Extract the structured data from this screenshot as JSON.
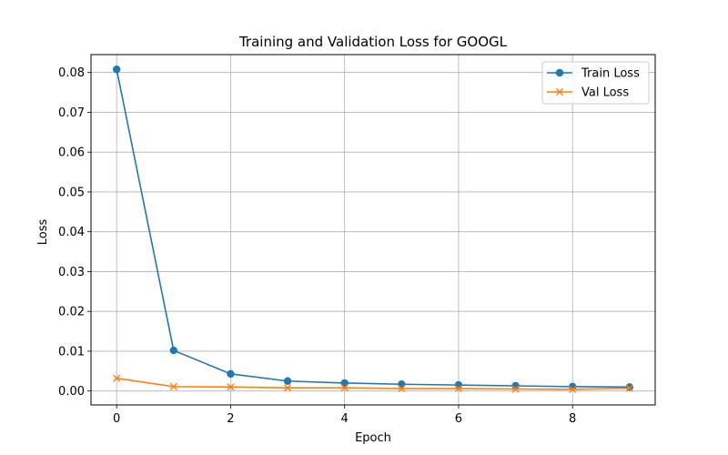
{
  "chart_data": {
    "type": "line",
    "title": "Training and Validation Loss for GOOGL",
    "xlabel": "Epoch",
    "ylabel": "Loss",
    "x": [
      0,
      1,
      2,
      3,
      4,
      5,
      6,
      7,
      8,
      9
    ],
    "xlim": [
      -0.45,
      9.45
    ],
    "ylim": [
      -0.0035,
      0.0845
    ],
    "x_ticks": [
      0,
      2,
      4,
      6,
      8
    ],
    "x_tick_labels": [
      "0",
      "2",
      "4",
      "6",
      "8"
    ],
    "y_ticks": [
      0,
      0.01,
      0.02,
      0.03,
      0.04,
      0.05,
      0.06,
      0.07,
      0.08
    ],
    "y_tick_labels": [
      "0.00",
      "0.01",
      "0.02",
      "0.03",
      "0.04",
      "0.05",
      "0.06",
      "0.07",
      "0.08"
    ],
    "grid": true,
    "legend_position": "top-right",
    "series": [
      {
        "name": "Train Loss",
        "marker": "circle",
        "color": "#1f77b4",
        "values": [
          0.0808,
          0.0102,
          0.0043,
          0.0025,
          0.002,
          0.0017,
          0.0015,
          0.0013,
          0.0011,
          0.001
        ]
      },
      {
        "name": "Val Loss",
        "marker": "x",
        "color": "#ff7f0e",
        "values": [
          0.0032,
          0.0011,
          0.001,
          0.0008,
          0.0008,
          0.0006,
          0.0006,
          0.0005,
          0.0004,
          0.0007
        ]
      }
    ]
  }
}
